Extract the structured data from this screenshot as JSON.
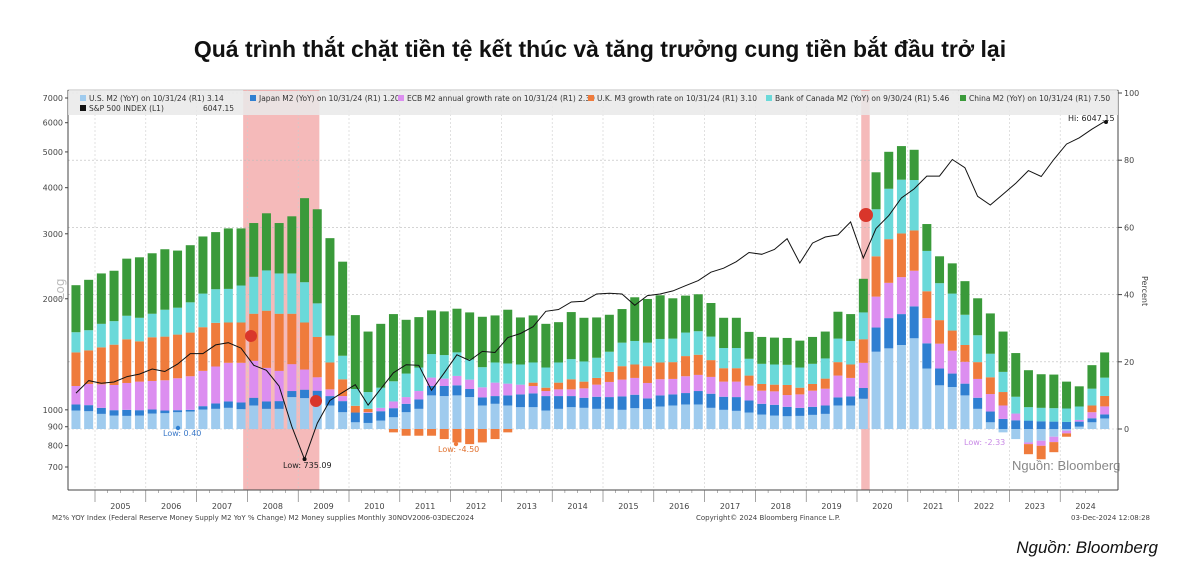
{
  "title": "Quá trình thắt chặt tiền tệ kết thúc và tăng trưởng cung tiền bắt đầu trở lại",
  "source": "Nguồn: Bloomberg",
  "watermark": "Nguồn: Bloomberg",
  "footer": {
    "left": "M2% YOY Index (Federal Reserve Money Supply M2 YoY % Change) M2 Money supplies  Monthly 30NOV2006-03DEC2024",
    "center": "Copyright© 2024 Bloomberg Finance L.P.",
    "right": "03-Dec-2024 12:08:28"
  },
  "chart_data": {
    "type": "bar",
    "stacked": true,
    "frequency": "quarterly",
    "start": "2004-Q3",
    "x_tick_labels": [
      "2005",
      "2006",
      "2007",
      "2008",
      "2009",
      "2010",
      "2011",
      "2012",
      "2013",
      "2014",
      "2015",
      "2016",
      "2017",
      "2018",
      "2019",
      "2020",
      "2021",
      "2022",
      "2023",
      "2024"
    ],
    "left_axis": {
      "label": "Log",
      "scale": "log",
      "range": [
        700,
        7000
      ],
      "ticks": [
        700,
        800,
        900,
        1000,
        2000,
        3000,
        4000,
        5000,
        6000,
        7000
      ]
    },
    "right_axis": {
      "label": "Percent",
      "range": [
        -18,
        100
      ],
      "ticks": [
        0,
        20,
        40,
        60,
        80,
        100
      ]
    },
    "grid": true,
    "legend_position": "top",
    "recessions": [
      [
        "2007-12",
        "2009-06"
      ],
      [
        "2020-02",
        "2020-04"
      ]
    ],
    "series": [
      {
        "name": "U.S. M2 (YoY) on 10/31/24 (R1)",
        "last": "3.14",
        "color": "#9fcbee",
        "axis": "right",
        "values": [
          5.5,
          5.3,
          4.5,
          4.0,
          3.9,
          4.0,
          4.6,
          4.7,
          5.0,
          5.2,
          5.8,
          6.0,
          6.3,
          5.9,
          7.0,
          6.0,
          6.0,
          9.5,
          9.2,
          8.5,
          7.0,
          5.0,
          2.0,
          1.8,
          2.5,
          3.5,
          5.0,
          6.0,
          10.0,
          9.8,
          10.0,
          9.5,
          7.0,
          7.5,
          7.0,
          6.5,
          6.5,
          5.5,
          6.0,
          6.5,
          6.3,
          6.0,
          6.0,
          5.7,
          6.2,
          5.9,
          6.7,
          7.0,
          7.3,
          7.3,
          6.3,
          5.7,
          5.4,
          4.9,
          4.3,
          4.0,
          3.8,
          3.9,
          4.2,
          4.5,
          7.0,
          7.0,
          9.0,
          23.0,
          24.0,
          25.0,
          27.0,
          18.0,
          13.0,
          12.5,
          10.0,
          6.0,
          2.0,
          -1.0,
          -3.0,
          -4.0,
          -3.5,
          -2.3,
          -0.5,
          0.7,
          2.0,
          3.14
        ]
      },
      {
        "name": "Japan M2 (YoY) on 10/31/24 (R1)",
        "last": "1.20",
        "color": "#2f7fd1",
        "axis": "right",
        "values": [
          1.8,
          1.8,
          1.8,
          1.6,
          1.8,
          1.6,
          1.2,
          0.8,
          0.6,
          0.5,
          1.0,
          1.6,
          1.9,
          2.0,
          2.3,
          2.2,
          2.3,
          1.8,
          2.5,
          2.9,
          2.8,
          3.3,
          2.9,
          3.0,
          2.8,
          2.7,
          2.5,
          2.8,
          2.8,
          3.0,
          3.0,
          2.4,
          2.4,
          2.3,
          3.0,
          3.8,
          4.1,
          4.3,
          3.8,
          3.3,
          3.0,
          3.6,
          3.5,
          4.0,
          4.0,
          3.2,
          3.3,
          3.3,
          3.4,
          4.0,
          4.2,
          3.9,
          4.1,
          3.6,
          3.2,
          3.2,
          2.8,
          2.4,
          2.4,
          2.5,
          2.4,
          2.7,
          3.2,
          7.2,
          9.0,
          9.2,
          9.5,
          7.5,
          5.0,
          4.0,
          3.5,
          3.3,
          3.2,
          3.0,
          2.6,
          2.5,
          2.3,
          2.2,
          2.1,
          1.5,
          1.2,
          1.2
        ]
      },
      {
        "name": "ECB M2 annual growth rate on 10/31/24 (R1)",
        "last": "2.39",
        "color": "#dc8ef0",
        "axis": "right",
        "values": [
          5.5,
          6.3,
          7.0,
          7.5,
          8.0,
          8.5,
          8.5,
          9.0,
          9.5,
          10.0,
          10.5,
          11.0,
          11.5,
          11.8,
          11.0,
          10.0,
          9.0,
          8.0,
          6.0,
          4.0,
          2.0,
          1.5,
          0.0,
          0.2,
          1.0,
          2.0,
          2.0,
          2.5,
          2.5,
          2.2,
          2.8,
          2.8,
          3.0,
          4.0,
          3.5,
          2.9,
          2.2,
          1.5,
          2.0,
          2.0,
          2.8,
          3.6,
          4.5,
          5.0,
          5.0,
          4.6,
          4.8,
          4.6,
          5.0,
          4.8,
          5.0,
          4.5,
          4.6,
          4.4,
          3.9,
          4.0,
          3.5,
          4.0,
          4.8,
          5.0,
          6.5,
          5.5,
          7.5,
          9.2,
          10.5,
          11.0,
          10.6,
          7.5,
          7.4,
          6.8,
          6.5,
          5.6,
          5.2,
          4.0,
          2.0,
          -0.5,
          -1.5,
          -1.6,
          -0.8,
          0.5,
          1.8,
          2.39
        ]
      },
      {
        "name": "U.K. M3 growth rate on 10/31/24 (R1)",
        "last": "3.10",
        "color": "#ef7b3c",
        "axis": "right",
        "values": [
          10,
          10,
          11,
          12,
          13,
          12,
          13,
          13,
          13,
          13,
          13,
          13,
          12,
          12,
          14,
          17,
          17,
          15,
          14,
          12,
          8,
          5,
          2,
          1,
          0,
          -1,
          -2,
          -2,
          -2,
          -3,
          -4,
          -4.5,
          -4,
          -3,
          -1,
          0,
          1,
          1,
          2,
          3,
          2,
          2,
          3,
          4,
          4,
          5,
          5,
          5,
          6,
          6,
          5,
          4,
          4,
          3,
          2,
          2,
          3,
          2,
          2,
          3,
          4,
          4,
          7,
          12,
          13,
          13,
          12,
          8,
          7,
          6,
          5,
          5,
          5,
          4,
          0,
          -3,
          -4,
          -3,
          -1,
          0,
          2,
          3.1
        ]
      },
      {
        "name": "Bank of Canada M2 (YoY) on 9/30/24 (R1)",
        "last": "5.46",
        "color": "#6ad9d9",
        "axis": "right",
        "values": [
          6,
          6,
          7,
          7,
          7,
          7,
          7,
          8,
          8,
          9,
          10,
          10,
          10,
          11,
          11,
          12,
          12,
          12,
          12,
          10,
          8,
          7,
          5,
          5,
          6,
          6,
          7,
          7,
          7,
          7,
          7,
          6,
          6,
          6,
          6,
          6,
          6,
          6,
          6,
          6,
          6,
          6,
          6,
          7,
          7,
          7,
          7,
          7,
          7,
          7,
          7,
          6,
          6,
          5,
          6,
          6,
          6,
          6,
          6,
          6,
          7,
          7,
          8,
          14,
          15,
          16,
          15,
          12,
          11,
          11,
          9,
          8,
          7,
          6,
          5,
          4,
          4,
          4,
          4,
          4,
          5,
          5.46
        ]
      },
      {
        "name": "China M2 (YoY) on 10/31/24 (R1)",
        "last": "7.50",
        "color": "#3a9a3a",
        "axis": "right",
        "values": [
          14,
          15,
          15,
          15,
          17,
          18,
          18,
          18,
          17,
          17,
          17,
          17,
          18,
          17,
          16,
          17,
          15,
          17,
          25,
          28,
          29,
          28,
          22,
          18,
          19,
          20,
          16,
          15,
          13,
          13,
          13,
          14,
          15,
          14,
          16,
          14,
          14,
          13,
          12,
          14,
          13,
          12,
          11,
          10,
          13,
          13,
          13,
          12,
          11,
          11,
          10,
          9,
          9,
          8,
          8,
          8,
          8,
          8,
          8,
          8,
          8,
          8,
          10,
          11,
          11,
          10,
          9,
          8,
          8,
          9,
          10,
          11,
          12,
          12,
          13,
          11,
          10,
          10,
          8,
          6,
          7,
          7.5
        ]
      }
    ],
    "line": {
      "name": "S&P 500 INDEX (L1)",
      "last": "6047.15",
      "color": "#111111",
      "axis": "left",
      "values": [
        1110,
        1200,
        1180,
        1190,
        1230,
        1250,
        1290,
        1270,
        1330,
        1420,
        1420,
        1500,
        1520,
        1470,
        1320,
        1280,
        1160,
        900,
        735.09,
        920,
        1060,
        1115,
        1170,
        1030,
        1140,
        1260,
        1325,
        1320,
        1130,
        1260,
        1410,
        1360,
        1440,
        1430,
        1570,
        1610,
        1680,
        1850,
        1870,
        1960,
        1970,
        2060,
        2070,
        2060,
        1920,
        2040,
        2060,
        2100,
        2170,
        2240,
        2360,
        2420,
        2520,
        2670,
        2640,
        2720,
        2910,
        2500,
        2830,
        2940,
        2980,
        3230,
        2580,
        3100,
        3360,
        3750,
        3970,
        4300,
        4300,
        4770,
        4530,
        3790,
        3590,
        3840,
        4110,
        4450,
        4290,
        4770,
        5250,
        5460,
        5760,
        6047.15
      ]
    },
    "annotations": [
      "Low: 0.40",
      "Low: 735.09",
      "Low: -4.50",
      "Low: -2.33",
      "Hi: 6047.15"
    ]
  }
}
